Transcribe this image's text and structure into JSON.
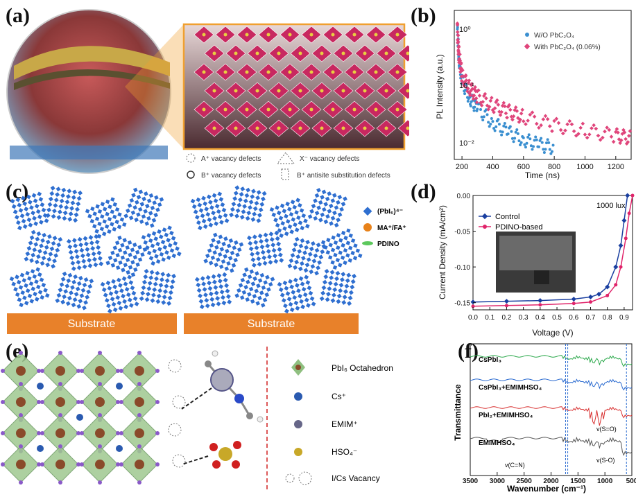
{
  "panel_labels": [
    "(a)",
    "(b)",
    "(c)",
    "(d)",
    "(e)",
    "(f)"
  ],
  "panel_a": {
    "legend": {
      "a_vac": "A⁺ vacancy defects",
      "x_vac": "X⁻ vacancy defects",
      "b_vac": "B⁺ vacancy defects",
      "b_anti": "B⁺ antisite substitution defects"
    }
  },
  "panel_c": {
    "substrate_left": "Substrate",
    "substrate_right": "Substrate",
    "legend": [
      "(PbI₆)⁴⁻",
      "MA⁺/FA⁺",
      "PDINO"
    ],
    "colors": {
      "octa": "#2f6fd0",
      "ma": "#e8821a",
      "pdino": "#5cc85c",
      "substrate": "#e8812a"
    }
  },
  "panel_e": {
    "legend": [
      "PbI₆ Octahedron",
      "Cs⁺",
      "EMIM⁺",
      "HSO₄⁻",
      "I/Cs Vacancy"
    ]
  },
  "chart_data": [
    {
      "panel": "b",
      "type": "scatter",
      "xlabel": "Time (ns)",
      "ylabel": "PL Intensity (a.u.)",
      "xlim": [
        150,
        1300
      ],
      "xticks": [
        200,
        400,
        600,
        800,
        1000,
        1200
      ],
      "ylog": true,
      "yticks": [
        "10⁰",
        "10⁻¹",
        "10⁻²"
      ],
      "series": [
        {
          "name": "W/O PbC₂O₄",
          "color": "#3a8fd0",
          "x": [
            170,
            180,
            200,
            250,
            300,
            400,
            500,
            600,
            700,
            800
          ],
          "y": [
            1.0,
            0.3,
            0.12,
            0.06,
            0.04,
            0.022,
            0.015,
            0.011,
            0.009,
            0.008
          ]
        },
        {
          "name": "With PbC₂O₄ (0.06%)",
          "color": "#e0457b",
          "x": [
            170,
            180,
            200,
            250,
            300,
            400,
            500,
            600,
            800,
            1000,
            1200,
            1300
          ],
          "y": [
            1.0,
            0.35,
            0.15,
            0.09,
            0.065,
            0.045,
            0.035,
            0.028,
            0.02,
            0.016,
            0.013,
            0.012
          ]
        }
      ]
    },
    {
      "panel": "d",
      "type": "line",
      "title": "1000 lux",
      "xlabel": "Voltage (V)",
      "ylabel": "Current Density (mA/cm²)",
      "xlim": [
        0.0,
        0.95
      ],
      "ylim": [
        -0.16,
        0.0
      ],
      "xticks": [
        "0.0",
        "0.1",
        "0.2",
        "0.3",
        "0.4",
        "0.5",
        "0.6",
        "0.7",
        "0.8",
        "0.9"
      ],
      "yticks": [
        "0.00",
        "-0.05",
        "-0.10",
        "-0.15"
      ],
      "series": [
        {
          "name": "Control",
          "color": "#1a3fa0",
          "x": [
            0.0,
            0.2,
            0.4,
            0.6,
            0.7,
            0.75,
            0.8,
            0.85,
            0.88,
            0.9,
            0.92
          ],
          "y": [
            -0.149,
            -0.148,
            -0.147,
            -0.145,
            -0.142,
            -0.138,
            -0.128,
            -0.1,
            -0.07,
            -0.035,
            0.0
          ]
        },
        {
          "name": "PDINO-based",
          "color": "#e0246a",
          "x": [
            0.0,
            0.2,
            0.4,
            0.6,
            0.7,
            0.8,
            0.85,
            0.88,
            0.91,
            0.93,
            0.95
          ],
          "y": [
            -0.155,
            -0.154,
            -0.153,
            -0.151,
            -0.149,
            -0.14,
            -0.125,
            -0.1,
            -0.06,
            -0.025,
            0.0
          ]
        }
      ]
    },
    {
      "panel": "f",
      "type": "line",
      "xlabel": "Wavenumber (cm⁻¹)",
      "ylabel": "Transmittance",
      "xlim": [
        3500,
        500
      ],
      "xticks": [
        "3500",
        "3000",
        "2500",
        "2000",
        "1500",
        "1000",
        "500"
      ],
      "series": [
        {
          "name": "CsPbI₃",
          "color": "#2aa84a"
        },
        {
          "name": "CsPbI₃+EMIMHSO₄",
          "color": "#2a6ad0"
        },
        {
          "name": "PbI₂+EMIMHSO₄",
          "color": "#d83030"
        },
        {
          "name": "EMIMHSO₄",
          "color": "#555555"
        }
      ],
      "annotations": [
        "v(C=N)",
        "v(S=O)",
        "v(S-O)"
      ]
    }
  ]
}
